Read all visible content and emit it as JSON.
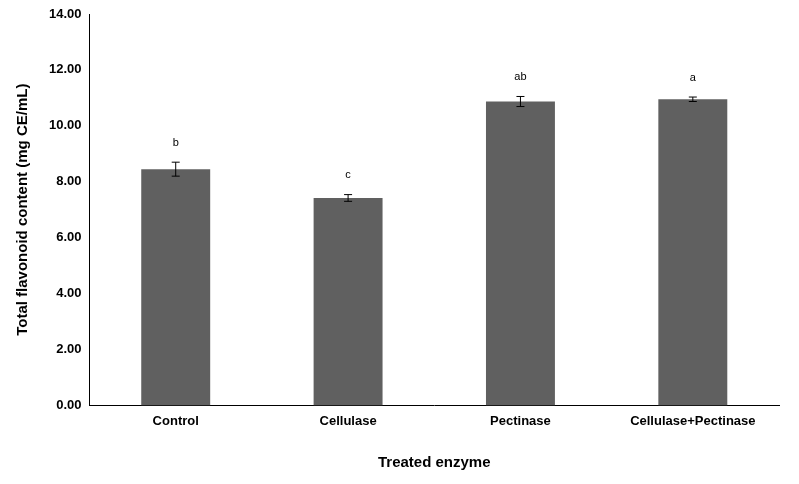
{
  "chart_data": {
    "type": "bar",
    "x_label": "Treated enzyme",
    "y_label": "Total flavonoid content (mg CE/mL)",
    "categories": [
      "Control",
      "Cellulase",
      "Pectinase",
      "Cellulase+Pectinase"
    ],
    "values": [
      8.45,
      7.42,
      10.87,
      10.95
    ],
    "errors": [
      0.25,
      0.12,
      0.18,
      0.08
    ],
    "annotations": [
      "b",
      "c",
      "ab",
      "a"
    ],
    "color": "#606060",
    "ylim": [
      0,
      14
    ],
    "yticks": [
      {
        "value": 0,
        "label": "0.00"
      },
      {
        "value": 2,
        "label": "2.00"
      },
      {
        "value": 4,
        "label": "4.00"
      },
      {
        "value": 6,
        "label": "6.00"
      },
      {
        "value": 8,
        "label": "8.00"
      },
      {
        "value": 10,
        "label": "10.00"
      },
      {
        "value": 12,
        "label": "12.00"
      },
      {
        "value": 14,
        "label": "14.00"
      }
    ],
    "grid": false
  }
}
